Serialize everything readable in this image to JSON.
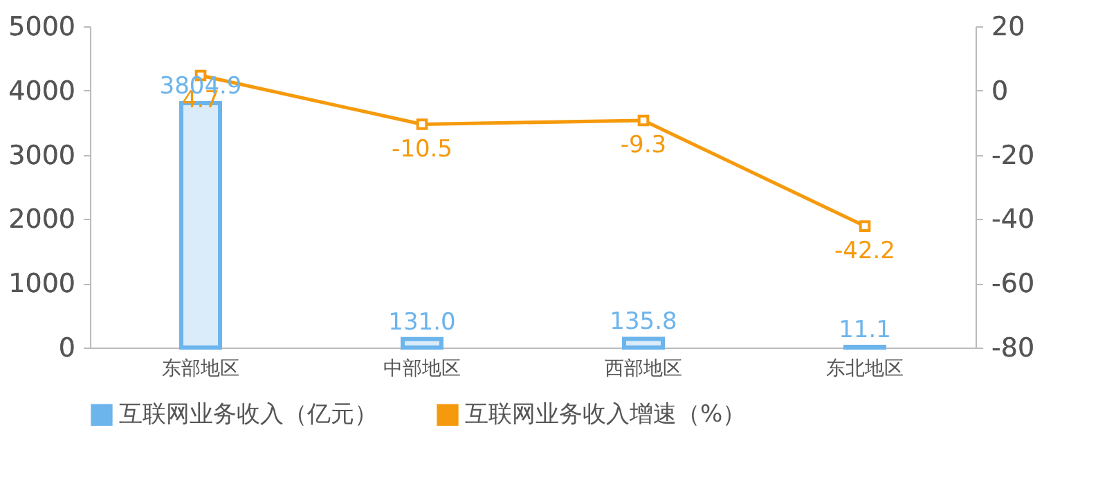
{
  "chart_data": {
    "type": "bar",
    "categories": [
      "东部地区",
      "中部地区",
      "西部地区",
      "东北地区"
    ],
    "series": [
      {
        "name": "互联网业务收入（亿元）",
        "color": "#6cb4ec",
        "values": [
          3804.9,
          131.0,
          135.8,
          11.1
        ],
        "value_labels": [
          "3804.9",
          "131.0",
          "135.8",
          "11.1"
        ]
      },
      {
        "name": "互联网业务收入增速（%）",
        "color": "#f59a0c",
        "type": "line",
        "axis": "y2",
        "marker": "square",
        "values": [
          4.7,
          -10.5,
          -9.3,
          -42.2
        ],
        "value_labels": [
          "4.7",
          "-10.5",
          "-9.3",
          "-42.2"
        ]
      }
    ],
    "ylim": [
      0,
      5000
    ],
    "yticks": [
      0,
      1000,
      2000,
      3000,
      4000,
      5000
    ],
    "y2lim": [
      -80,
      20
    ],
    "y2ticks": [
      -80,
      -60,
      -40,
      -20,
      0,
      20
    ],
    "legend": "bottom",
    "grid": false
  }
}
